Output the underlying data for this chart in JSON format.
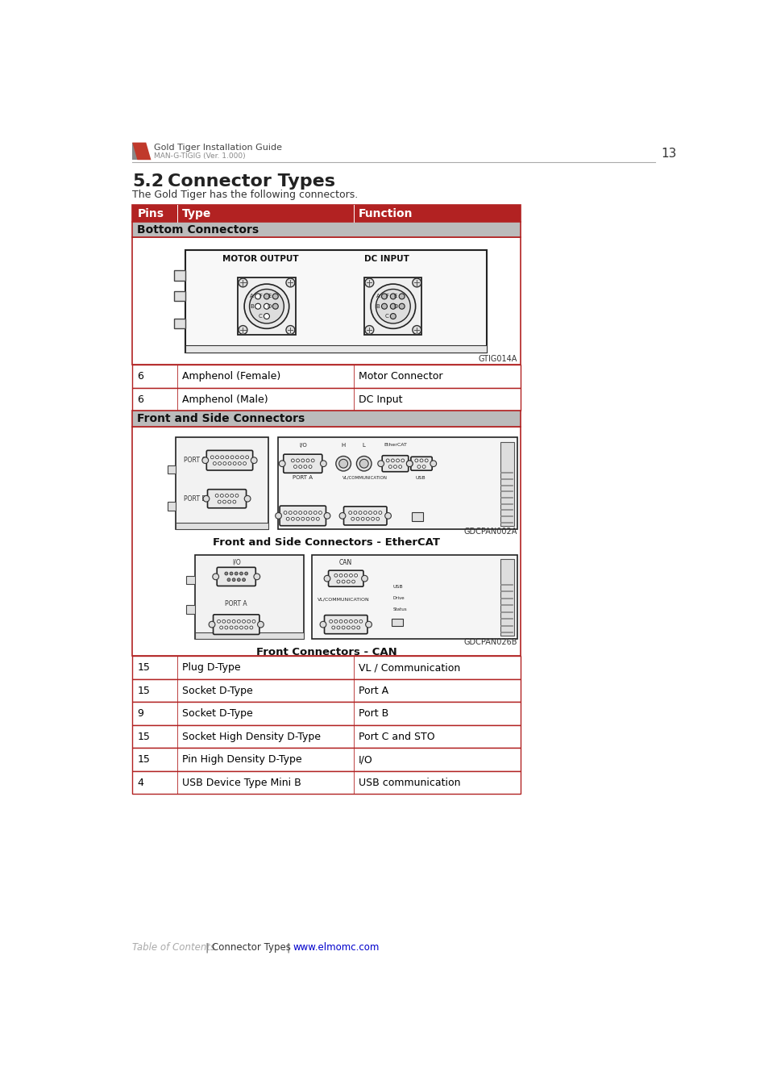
{
  "page_title": "Gold Tiger Installation Guide",
  "page_subtitle": "MAN-G-TIGIG (Ver. 1.000)",
  "page_number": "13",
  "section_num": "5.2",
  "section_name": "Connector Types",
  "intro_text": "The Gold Tiger has the following connectors.",
  "header_bg": "#B22222",
  "header_text_color": "#FFFFFF",
  "section_bg": "#BBBBBB",
  "table_border_color": "#B22222",
  "row_line_color": "#B22222",
  "bg_color": "#FFFFFF",
  "col_headers": [
    "Pins",
    "Type",
    "Function"
  ],
  "bottom_connectors_label": "Bottom Connectors",
  "bottom_image_label": "GTIG014A",
  "bottom_rows": [
    {
      "pins": "6",
      "type": "Amphenol (Female)",
      "function": "Motor Connector"
    },
    {
      "pins": "6",
      "type": "Amphenol (Male)",
      "function": "DC Input"
    }
  ],
  "front_connectors_label": "Front and Side Connectors",
  "front_image_label1": "GDCPAN002A",
  "front_caption1": "Front and Side Connectors - EtherCAT",
  "front_image_label2": "GDCPAN026B",
  "front_caption2": "Front Connectors - CAN",
  "front_rows": [
    {
      "pins": "15",
      "type": "Plug D-Type",
      "function": "VL / Communication"
    },
    {
      "pins": "15",
      "type": "Socket D-Type",
      "function": "Port A"
    },
    {
      "pins": "9",
      "type": "Socket D-Type",
      "function": "Port B"
    },
    {
      "pins": "15",
      "type": "Socket High Density D-Type",
      "function": "Port C and STO"
    },
    {
      "pins": "15",
      "type": "Pin High Density D-Type",
      "function": "I/O"
    },
    {
      "pins": "4",
      "type": "USB Device Type Mini B",
      "function": "USB communication"
    }
  ],
  "footer_italic": "Table of Contents",
  "footer_link1": "Connector Types",
  "footer_link2": "www.elmomc.com"
}
